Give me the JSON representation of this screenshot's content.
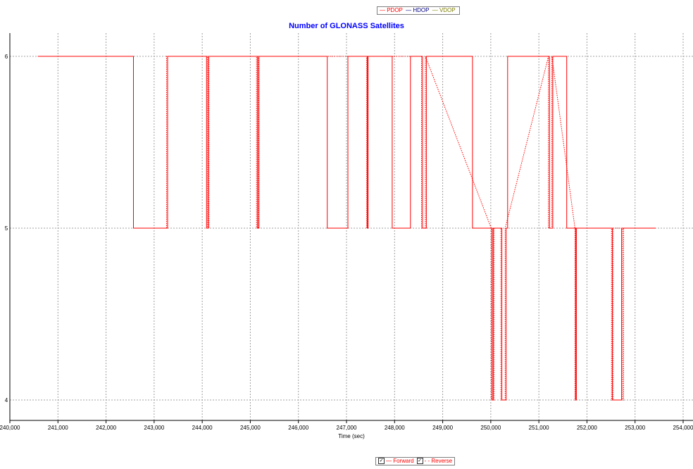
{
  "top_legend": {
    "items": [
      {
        "label": "— PDOP",
        "color": "#ff0000"
      },
      {
        "label": "— HDOP",
        "color": "#000080"
      },
      {
        "label": "— VDOP",
        "color": "#808000"
      }
    ]
  },
  "bottom_legend": {
    "forward": {
      "check": "✓",
      "label": "— Forward",
      "checked": true
    },
    "reverse": {
      "check": "✓",
      "label": "- - Reverse",
      "checked": true
    }
  },
  "chart_data": {
    "type": "line",
    "title": "Number of GLONASS Satellites",
    "xlabel": "Time (sec)",
    "ylabel": "",
    "xlim": [
      240000,
      254000
    ],
    "ylim": [
      3.98,
      6.1
    ],
    "grid": true,
    "x_ticks": [
      {
        "value": 240000,
        "label": "240,000"
      },
      {
        "value": 241000,
        "label": "241,000"
      },
      {
        "value": 242000,
        "label": "242,000"
      },
      {
        "value": 243000,
        "label": "243,000"
      },
      {
        "value": 244000,
        "label": "244,000"
      },
      {
        "value": 245000,
        "label": "245,000"
      },
      {
        "value": 246000,
        "label": "246,000"
      },
      {
        "value": 247000,
        "label": "247,000"
      },
      {
        "value": 248000,
        "label": "248,000"
      },
      {
        "value": 249000,
        "label": "249,000"
      },
      {
        "value": 250000,
        "label": "250,000"
      },
      {
        "value": 251000,
        "label": "251,000"
      },
      {
        "value": 252000,
        "label": "252,000"
      },
      {
        "value": 253000,
        "label": "253,000"
      },
      {
        "value": 254000,
        "label": "254,000"
      }
    ],
    "y_ticks": [
      {
        "value": 4,
        "label": "4"
      },
      {
        "value": 5,
        "label": "5"
      },
      {
        "value": 6,
        "label": "6"
      }
    ],
    "series": [
      {
        "name": "Forward",
        "color": "#ff0000",
        "dash": "solid",
        "points": [
          [
            240580,
            6
          ],
          [
            242570,
            6
          ],
          [
            242570,
            5
          ],
          [
            243280,
            5
          ],
          [
            243280,
            6
          ],
          [
            244090,
            6
          ],
          [
            244090,
            5
          ],
          [
            244130,
            5
          ],
          [
            244130,
            6
          ],
          [
            245150,
            6
          ],
          [
            245150,
            5
          ],
          [
            245180,
            5
          ],
          [
            245180,
            6
          ],
          [
            246600,
            6
          ],
          [
            246600,
            5
          ],
          [
            247030,
            5
          ],
          [
            247030,
            6
          ],
          [
            247430,
            6
          ],
          [
            247430,
            5
          ],
          [
            247450,
            5
          ],
          [
            247450,
            6
          ],
          [
            247950,
            6
          ],
          [
            247950,
            5
          ],
          [
            248330,
            5
          ],
          [
            248330,
            6
          ],
          [
            248580,
            6
          ],
          [
            248580,
            5
          ],
          [
            248660,
            5
          ],
          [
            248660,
            6
          ],
          [
            249620,
            6
          ],
          [
            249620,
            5
          ],
          [
            250030,
            5
          ],
          [
            250030,
            4
          ],
          [
            250050,
            4
          ],
          [
            250050,
            5
          ],
          [
            250230,
            5
          ],
          [
            250230,
            4
          ],
          [
            250320,
            4
          ],
          [
            250320,
            5
          ],
          [
            250350,
            5
          ],
          [
            250350,
            6
          ],
          [
            251220,
            6
          ],
          [
            251220,
            5
          ],
          [
            251290,
            5
          ],
          [
            251290,
            6
          ],
          [
            251580,
            6
          ],
          [
            251580,
            5
          ],
          [
            251770,
            5
          ],
          [
            251770,
            4
          ],
          [
            251780,
            4
          ],
          [
            251780,
            5
          ],
          [
            252530,
            5
          ],
          [
            252530,
            4
          ],
          [
            252720,
            4
          ],
          [
            252720,
            5
          ],
          [
            253430,
            5
          ]
        ]
      },
      {
        "name": "Reverse",
        "color": "#ff0000",
        "dash": "dotted",
        "points": [
          [
            243260,
            5
          ],
          [
            243260,
            6
          ],
          [
            244110,
            6
          ],
          [
            244110,
            5
          ],
          [
            244140,
            5
          ],
          [
            244140,
            6
          ],
          [
            245130,
            6
          ],
          [
            245130,
            5
          ],
          [
            245170,
            5
          ],
          [
            245170,
            6
          ],
          [
            247420,
            6
          ],
          [
            247420,
            5
          ],
          [
            247440,
            5
          ],
          [
            247440,
            6
          ],
          [
            248560,
            6
          ],
          [
            248560,
            5
          ],
          [
            248640,
            5
          ],
          [
            248640,
            6
          ],
          [
            250010,
            5
          ],
          [
            250010,
            4
          ],
          [
            250070,
            4
          ],
          [
            250070,
            5
          ],
          [
            250210,
            5
          ],
          [
            250210,
            4
          ],
          [
            250300,
            4
          ],
          [
            250300,
            5
          ],
          [
            251200,
            6
          ],
          [
            251200,
            5
          ],
          [
            251270,
            5
          ],
          [
            251270,
            6
          ],
          [
            251750,
            5
          ],
          [
            251750,
            4
          ],
          [
            251760,
            4
          ],
          [
            251760,
            5
          ],
          [
            252510,
            5
          ],
          [
            252510,
            4
          ],
          [
            252540,
            4
          ],
          [
            252540,
            5
          ],
          [
            252740,
            5
          ],
          [
            252740,
            4
          ],
          [
            252760,
            4
          ],
          [
            252760,
            5
          ]
        ]
      }
    ]
  }
}
